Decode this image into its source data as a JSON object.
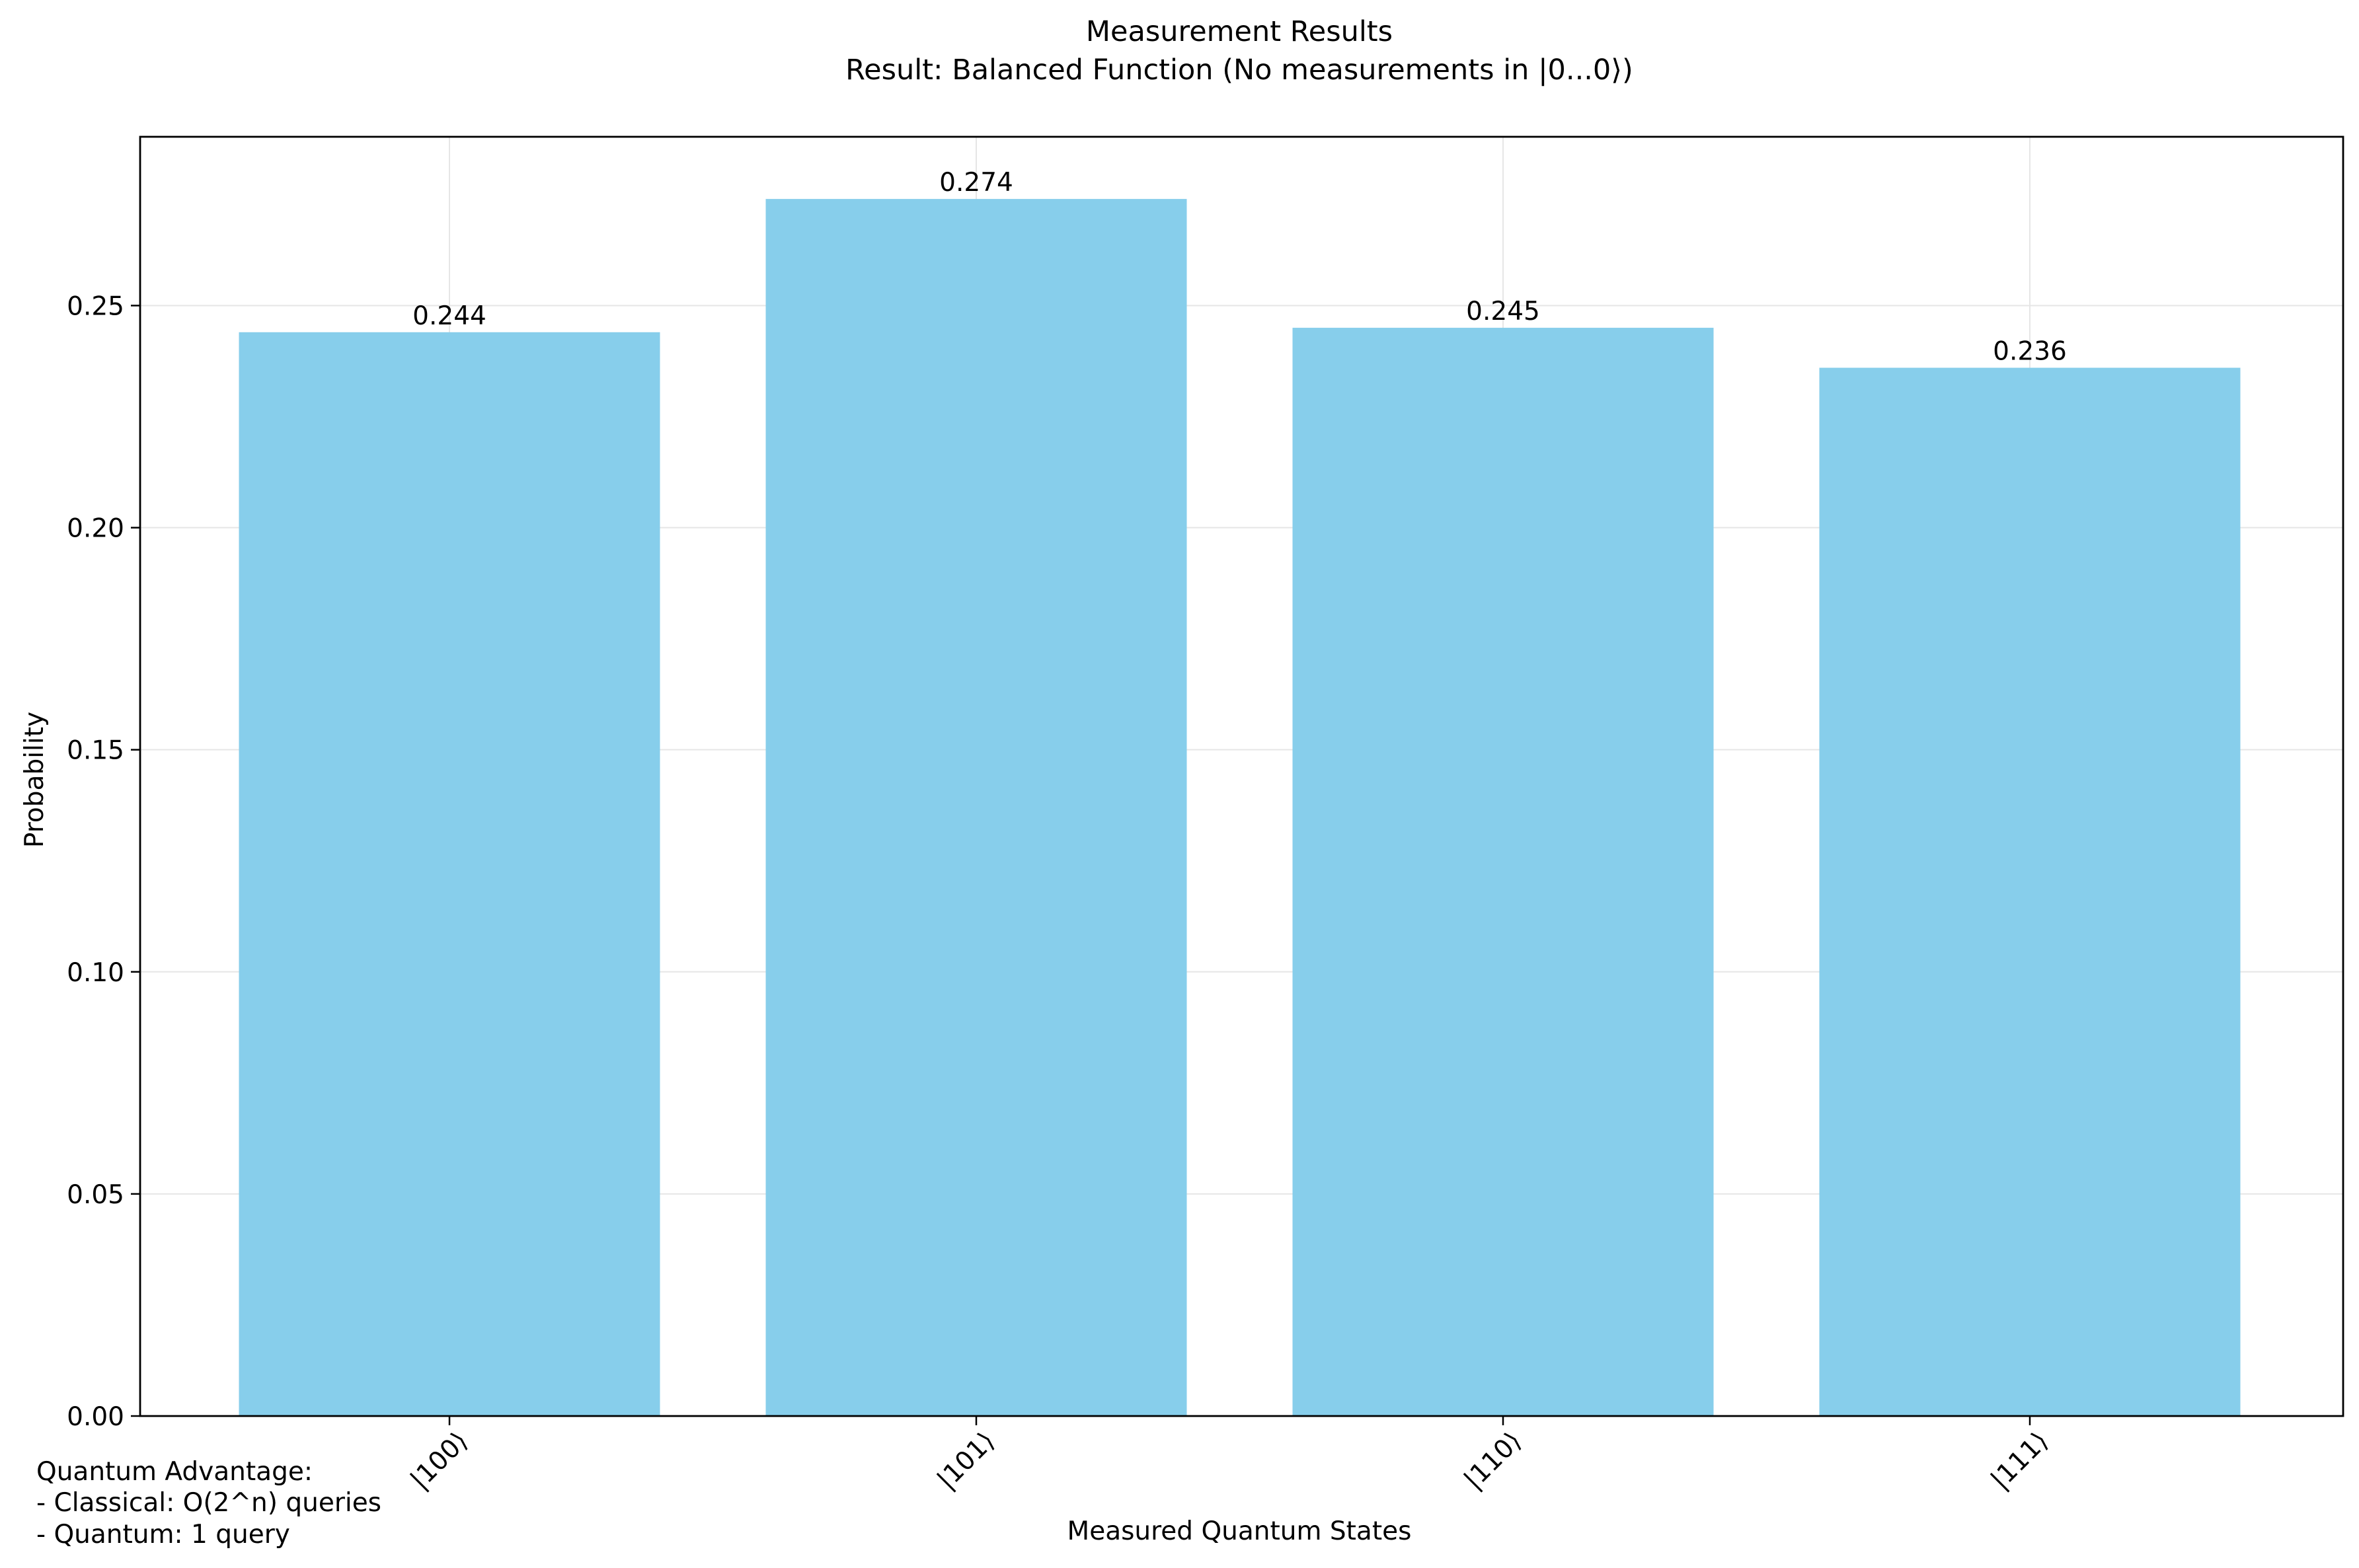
{
  "chart_data": {
    "type": "bar",
    "title": "Measurement Results",
    "subtitle": "Result: Balanced Function (No measurements in |0...0⟩)",
    "xlabel": "Measured Quantum States",
    "ylabel": "Probability",
    "categories": [
      "|100⟩",
      "|101⟩",
      "|110⟩",
      "|111⟩"
    ],
    "values": [
      0.244,
      0.274,
      0.245,
      0.236
    ],
    "data_labels": [
      "0.244",
      "0.274",
      "0.245",
      "0.236"
    ],
    "ylim": [
      0,
      0.288
    ],
    "yticks": [
      0.0,
      0.05,
      0.1,
      0.15,
      0.2,
      0.25
    ],
    "ytick_labels": [
      "0.00",
      "0.05",
      "0.10",
      "0.15",
      "0.20",
      "0.25"
    ],
    "grid": true,
    "bar_color": "#87CEEB",
    "xtick_rotation_deg": 45
  },
  "annotation": {
    "lines": [
      "Quantum Advantage:",
      "- Classical: O(2^n) queries",
      "- Quantum: 1 query"
    ]
  }
}
